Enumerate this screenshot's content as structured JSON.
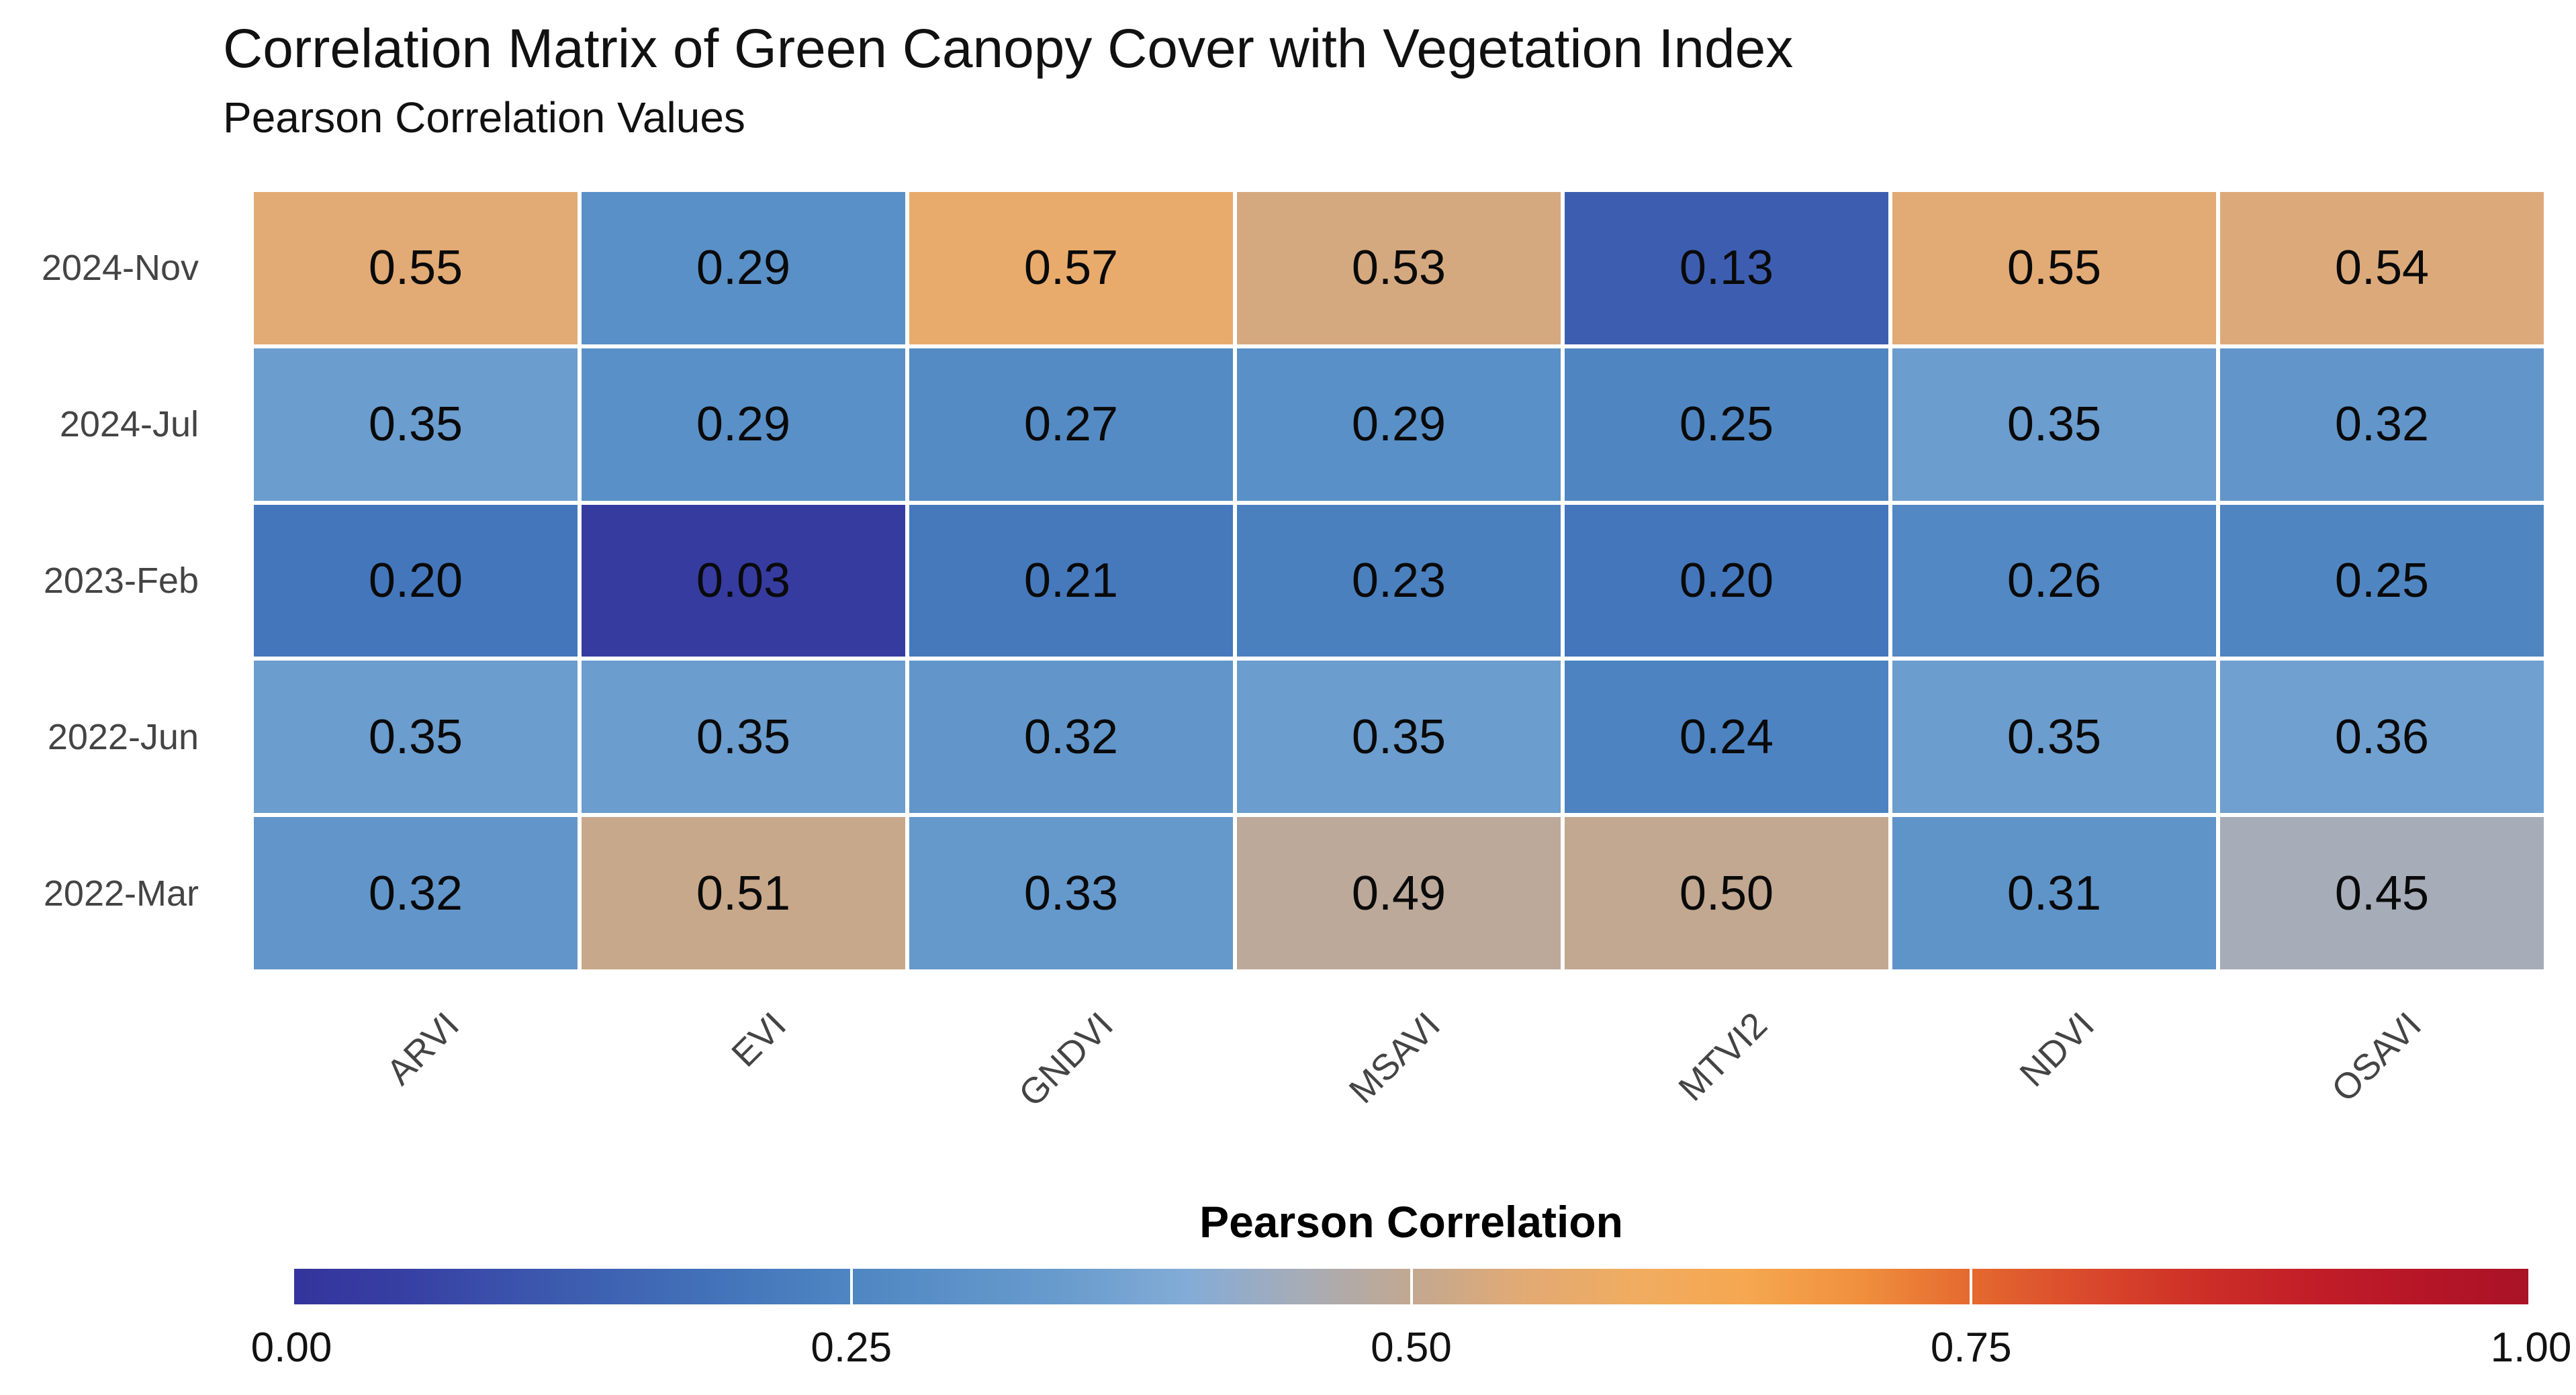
{
  "header": {
    "title": "Correlation Matrix of Green Canopy Cover with Vegetation Index",
    "subtitle": "Pearson Correlation Values"
  },
  "chart_data": {
    "type": "heatmap",
    "title": "Correlation Matrix of Green Canopy Cover with Vegetation Index",
    "subtitle": "Pearson Correlation Values",
    "rows": [
      "2024-Nov",
      "2024-Jul",
      "2023-Feb",
      "2022-Jun",
      "2022-Mar"
    ],
    "columns": [
      "ARVI",
      "EVI",
      "GNDVI",
      "MSAVI",
      "MTVI2",
      "NDVI",
      "OSAVI"
    ],
    "values": [
      [
        0.55,
        0.29,
        0.57,
        0.53,
        0.13,
        0.55,
        0.54
      ],
      [
        0.35,
        0.29,
        0.27,
        0.29,
        0.25,
        0.35,
        0.32
      ],
      [
        0.2,
        0.03,
        0.21,
        0.23,
        0.2,
        0.26,
        0.25
      ],
      [
        0.35,
        0.35,
        0.32,
        0.35,
        0.24,
        0.35,
        0.36
      ],
      [
        0.32,
        0.51,
        0.33,
        0.49,
        0.5,
        0.31,
        0.45
      ]
    ],
    "value_decimals": 2,
    "grid": true,
    "legend_position": "bottom",
    "colorbar": {
      "title": "Pearson Correlation",
      "min": 0.0,
      "max": 1.0,
      "tick_values": [
        0.0,
        0.25,
        0.5,
        0.75,
        1.0
      ],
      "tick_labels": [
        "0.00",
        "0.25",
        "0.50",
        "0.75",
        "1.00"
      ]
    },
    "colors": {
      "background": "#ffffff",
      "cell_text": "#0a0a0a",
      "axis_text": "#444444",
      "title_text": "#111111",
      "colormap_stops": [
        {
          "p": 0.0,
          "c": "#34349B"
        },
        {
          "p": 0.05,
          "c": "#373FA3"
        },
        {
          "p": 0.1,
          "c": "#3B53AC"
        },
        {
          "p": 0.15,
          "c": "#3F65B3"
        },
        {
          "p": 0.2,
          "c": "#4476BB"
        },
        {
          "p": 0.25,
          "c": "#4F86C2"
        },
        {
          "p": 0.3,
          "c": "#5C92C8"
        },
        {
          "p": 0.35,
          "c": "#6B9DCE"
        },
        {
          "p": 0.4,
          "c": "#83ACD7"
        },
        {
          "p": 0.45,
          "c": "#A6ACB8"
        },
        {
          "p": 0.5,
          "c": "#C2A891"
        },
        {
          "p": 0.55,
          "c": "#E2AA74"
        },
        {
          "p": 0.6,
          "c": "#F0AC60"
        },
        {
          "p": 0.65,
          "c": "#F6A750"
        },
        {
          "p": 0.7,
          "c": "#F0903E"
        },
        {
          "p": 0.75,
          "c": "#E4692F"
        },
        {
          "p": 0.8,
          "c": "#DA4A2C"
        },
        {
          "p": 0.85,
          "c": "#CE3027"
        },
        {
          "p": 0.9,
          "c": "#C21E28"
        },
        {
          "p": 0.95,
          "c": "#B61627"
        },
        {
          "p": 1.0,
          "c": "#A91226"
        }
      ]
    }
  }
}
